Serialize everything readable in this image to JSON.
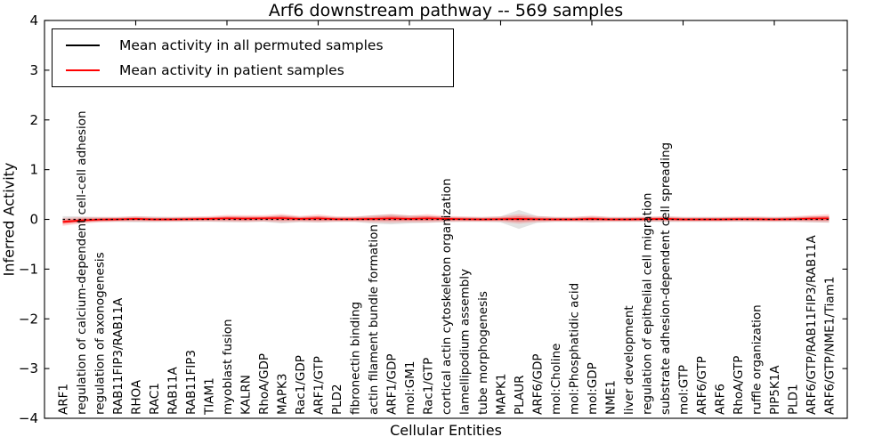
{
  "title": "Arf6 downstream pathway -- 569 samples",
  "axes": {
    "xlabel": "Cellular Entities",
    "ylabel": "Inferred Activity",
    "ylim": [
      -4,
      4
    ],
    "ytick_labels": [
      "4",
      "3",
      "2",
      "1",
      "0",
      "−1",
      "−2",
      "−3",
      "−4"
    ],
    "x_major_tick_interval": 5
  },
  "legend": {
    "entries": [
      {
        "label": "Mean activity in all permuted samples",
        "color": "#000000"
      },
      {
        "label": "Mean activity in patient samples",
        "color": "#ff0000"
      }
    ]
  },
  "colors": {
    "permuted_line": "#000000",
    "patient_line": "#ff0000",
    "permuted_band": "#c8c8c8",
    "patient_band": "#ff0000",
    "axis": "#000000",
    "background": "#ffffff"
  },
  "chart_data": {
    "type": "line",
    "title": "Arf6 downstream pathway -- 569 samples",
    "xlabel": "Cellular Entities",
    "ylabel": "Inferred Activity",
    "ylim": [
      -4,
      4
    ],
    "grid": false,
    "legend_position": "upper left",
    "categories": [
      "ARF1",
      "regulation of calcium-dependent cell-cell adhesion",
      "regulation of axonogenesis",
      "RAB11FIP3/RAB11A",
      "RHOA",
      "RAC1",
      "RAB11A",
      "RAB11FIP3",
      "TIAM1",
      "myoblast fusion",
      "KALRN",
      "RhoA/GDP",
      "MAPK3",
      "Rac1/GDP",
      "ARF1/GTP",
      "PLD2",
      "fibronectin binding",
      "actin filament bundle formation",
      "ARF1/GDP",
      "mol:GM1",
      "Rac1/GTP",
      "cortical actin cytoskeleton organization",
      "lamellipodium assembly",
      "tube morphogenesis",
      "MAPK1",
      "PLAUR",
      "ARF6/GDP",
      "mol:Choline",
      "mol:Phosphatidic acid",
      "mol:GDP",
      "NME1",
      "liver development",
      "regulation of epithelial cell migration",
      "substrate adhesion-dependent cell spreading",
      "mol:GTP",
      "ARF6/GTP",
      "ARF6",
      "RhoA/GTP",
      "ruffle organization",
      "PIP5K1A",
      "PLD1",
      "ARF6/GTP/RAB11FIP3/RAB11A",
      "ARF6/GTP/NME1/Tiam1"
    ],
    "series": [
      {
        "name": "Mean activity in all permuted samples",
        "color": "#000000",
        "style": "dashed",
        "values": [
          0,
          0,
          0,
          0,
          0,
          0,
          0,
          0,
          0,
          0,
          0,
          0,
          0,
          0,
          0,
          0,
          0,
          0,
          0,
          0,
          0,
          0,
          0,
          0,
          0,
          0,
          0,
          0,
          0,
          0,
          0,
          0,
          0,
          0,
          0,
          0,
          0,
          0,
          0,
          0,
          0,
          0,
          0
        ]
      },
      {
        "name": "Mean activity in patient samples",
        "color": "#ff0000",
        "style": "solid",
        "values": [
          -0.05,
          -0.02,
          -0.005,
          0,
          0.01,
          0,
          0,
          0.005,
          0.01,
          0.02,
          0.015,
          0.02,
          0.025,
          0.01,
          0.02,
          0.005,
          0.005,
          0.01,
          0.02,
          0.01,
          0.02,
          0.01,
          0.005,
          0,
          0.005,
          0.01,
          0.005,
          0,
          0,
          0.01,
          0,
          0,
          0.005,
          0.01,
          0,
          0,
          0,
          0.005,
          0.005,
          0,
          0.005,
          0.015,
          0.02
        ]
      }
    ],
    "bands": [
      {
        "name": "permuted samples std band",
        "color": "#c8c8c8",
        "opacity": 0.5,
        "center_series": 0,
        "half_widths": [
          0.065,
          0.06,
          0.05,
          0.05,
          0.06,
          0.055,
          0.05,
          0.05,
          0.05,
          0.055,
          0.055,
          0.05,
          0.08,
          0.055,
          0.06,
          0.05,
          0.05,
          0.085,
          0.1,
          0.08,
          0.07,
          0.055,
          0.05,
          0.05,
          0.06,
          0.19,
          0.07,
          0.05,
          0.05,
          0.06,
          0.05,
          0.05,
          0.05,
          0.055,
          0.05,
          0.05,
          0.05,
          0.05,
          0.05,
          0.05,
          0.05,
          0.06,
          0.065
        ]
      },
      {
        "name": "patient samples std band",
        "color": "#ff0000",
        "opacity": 0.16,
        "center_series": 1,
        "half_widths": [
          0.08,
          0.065,
          0.055,
          0.05,
          0.055,
          0.05,
          0.05,
          0.05,
          0.055,
          0.07,
          0.07,
          0.065,
          0.085,
          0.06,
          0.08,
          0.055,
          0.055,
          0.07,
          0.09,
          0.07,
          0.085,
          0.06,
          0.055,
          0.05,
          0.055,
          0.095,
          0.06,
          0.05,
          0.05,
          0.065,
          0.05,
          0.05,
          0.05,
          0.055,
          0.05,
          0.05,
          0.05,
          0.05,
          0.055,
          0.05,
          0.055,
          0.07,
          0.085
        ]
      }
    ]
  }
}
